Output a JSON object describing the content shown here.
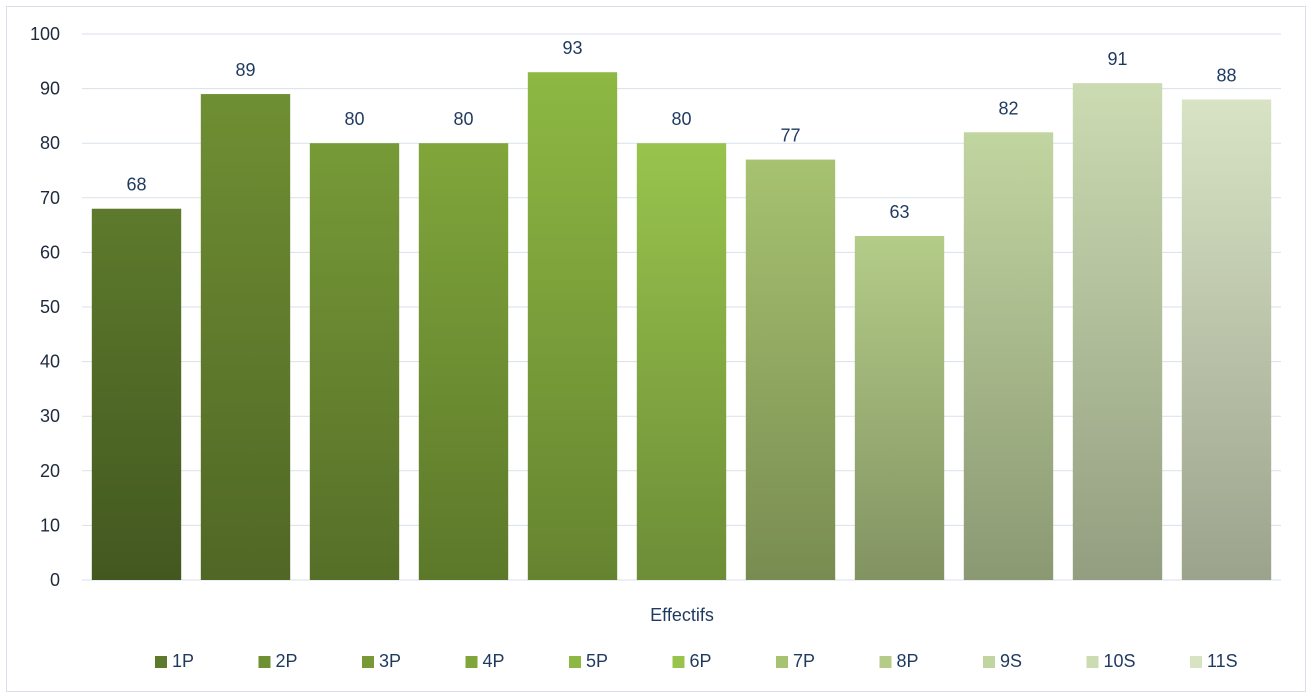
{
  "chart_data": {
    "type": "bar",
    "title": "",
    "xlabel": "Effectifs",
    "ylabel": "",
    "ylim": [
      0,
      100
    ],
    "yticks": [
      0,
      10,
      20,
      30,
      40,
      50,
      60,
      70,
      80,
      90,
      100
    ],
    "grid": true,
    "legend_position": "bottom",
    "series": [
      {
        "name": "1P",
        "values": [
          68
        ],
        "color": "#5d7a2c"
      },
      {
        "name": "2P",
        "values": [
          89
        ],
        "color": "#6f8f33"
      },
      {
        "name": "3P",
        "values": [
          80
        ],
        "color": "#779a37"
      },
      {
        "name": "4P",
        "values": [
          80
        ],
        "color": "#80a63b"
      },
      {
        "name": "5P",
        "values": [
          93
        ],
        "color": "#8db843"
      },
      {
        "name": "6P",
        "values": [
          80
        ],
        "color": "#98c44d"
      },
      {
        "name": "7P",
        "values": [
          77
        ],
        "color": "#a7c270"
      },
      {
        "name": "8P",
        "values": [
          63
        ],
        "color": "#b4cc88"
      },
      {
        "name": "9S",
        "values": [
          82
        ],
        "color": "#c1d5a0"
      },
      {
        "name": "10S",
        "values": [
          91
        ],
        "color": "#ccdbb2"
      },
      {
        "name": "11S",
        "values": [
          88
        ],
        "color": "#d8e3c4"
      }
    ],
    "data_labels": [
      "68",
      "89",
      "80",
      "80",
      "93",
      "80",
      "77",
      "63",
      "82",
      "91",
      "88"
    ]
  }
}
